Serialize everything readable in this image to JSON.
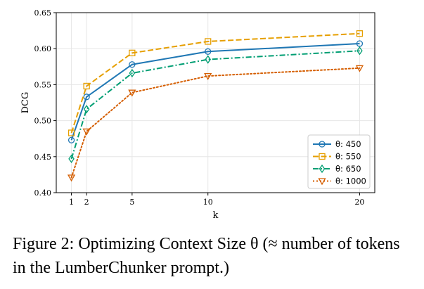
{
  "chart_data": {
    "type": "line",
    "xlabel": "k",
    "ylabel": "DCG",
    "x": [
      1,
      2,
      5,
      10,
      20
    ],
    "xlim": [
      0,
      21
    ],
    "ylim": [
      0.4,
      0.65
    ],
    "xticks": [
      "1",
      "2",
      "5",
      "10",
      "20"
    ],
    "yticks": [
      "0.40",
      "0.45",
      "0.50",
      "0.55",
      "0.60",
      "0.65"
    ],
    "grid": true,
    "legend_position": "bottom-right",
    "series": [
      {
        "name": "θ: 450",
        "values": [
          0.473,
          0.533,
          0.578,
          0.596,
          0.607
        ],
        "color": "#1f77b4",
        "marker": "circle",
        "dash": "solid"
      },
      {
        "name": "θ: 550",
        "values": [
          0.483,
          0.548,
          0.594,
          0.61,
          0.621
        ],
        "color": "#e69f00",
        "marker": "square",
        "dash": "dashed"
      },
      {
        "name": "θ: 650",
        "values": [
          0.447,
          0.516,
          0.566,
          0.585,
          0.597
        ],
        "color": "#009e73",
        "marker": "diamond",
        "dash": "dashdot"
      },
      {
        "name": "θ: 1000",
        "values": [
          0.421,
          0.485,
          0.539,
          0.562,
          0.573
        ],
        "color": "#d55e00",
        "marker": "triangle-down",
        "dash": "dotted"
      }
    ]
  },
  "caption": "Figure 2: Optimizing Context Size θ (≈ number of tokens in the LumberChunker prompt.)"
}
